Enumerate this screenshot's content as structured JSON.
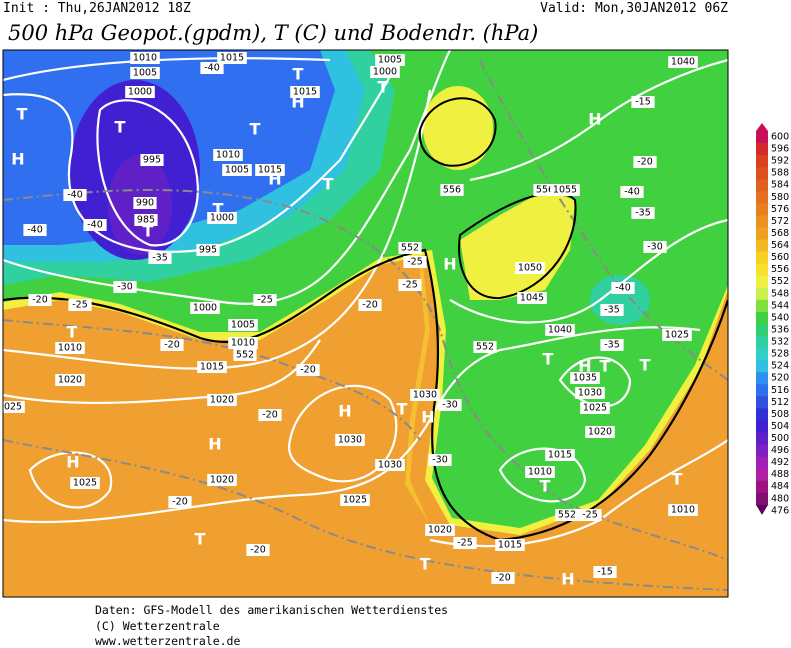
{
  "header": {
    "init": "Init : Thu,26JAN2012 18Z",
    "valid": "Valid: Mon,30JAN2012 06Z",
    "title": "500 hPa Geopot.(gpdm), T (C) und Bodendr. (hPa)"
  },
  "colorbar": {
    "levels": [
      600,
      596,
      592,
      588,
      584,
      580,
      576,
      572,
      568,
      564,
      560,
      556,
      552,
      548,
      544,
      540,
      536,
      532,
      528,
      524,
      520,
      516,
      512,
      508,
      504,
      500,
      496,
      492,
      488,
      484,
      480,
      476
    ],
    "colors": [
      "#c8105a",
      "#d42a2a",
      "#d84020",
      "#dc5020",
      "#e06020",
      "#e47020",
      "#e88020",
      "#ec9020",
      "#f0a020",
      "#f4b820",
      "#f8d020",
      "#f8e030",
      "#f0f040",
      "#c8f050",
      "#80e040",
      "#40d040",
      "#30d070",
      "#30d0a0",
      "#30d0c8",
      "#30c0e0",
      "#3090f0",
      "#3070f0",
      "#3050e0",
      "#3030d8",
      "#4020d0",
      "#6020c8",
      "#8020c0",
      "#a020b8",
      "#b020a0",
      "#a01080",
      "#801070",
      "#600060"
    ]
  },
  "map_labels": [
    "T",
    "H",
    "T",
    "1000",
    "1005",
    "1010",
    "1015",
    "-40",
    "T",
    "H",
    "1015",
    "T",
    "1010",
    "995",
    "1005",
    "1015",
    "H",
    "T",
    "990",
    "985",
    "T",
    "-40",
    "-40",
    "-40",
    "1000",
    "T",
    "995",
    "-35",
    "-30",
    "-25",
    "-20",
    "T",
    "1010",
    "1020",
    "-20",
    "1000",
    "1005",
    "1010",
    "1015",
    "552",
    "-25",
    "-20",
    "-20",
    "1020",
    "-20",
    "H",
    "T",
    "1030",
    "1030",
    "H",
    "H",
    "1025",
    "1025",
    "1020",
    "-20",
    "T",
    "-20",
    "1025",
    "1020",
    "-25",
    "1015",
    "-20",
    "T",
    "H",
    "-15",
    "T",
    "1010",
    "1015",
    "1020",
    "1025",
    "1030",
    "1035",
    "T",
    "H",
    "T",
    "T",
    "-35",
    "1025",
    "1040",
    "1045",
    "1050",
    "552",
    "-40",
    "-35",
    "H",
    "-25",
    "-25",
    "-30",
    "-30",
    "1030",
    "H",
    "T",
    "1010",
    "-25",
    "552",
    "1040",
    "H",
    "-15",
    "-20",
    "-40",
    "-35",
    "-30",
    "556",
    "1055",
    "552",
    "556",
    "T",
    "1000",
    "1005"
  ],
  "footer": {
    "source": "Daten: GFS-Modell des amerikanischen Wetterdienstes",
    "copyright": "(C) Wetterzentrale",
    "url": "www.wetterzentrale.de"
  }
}
